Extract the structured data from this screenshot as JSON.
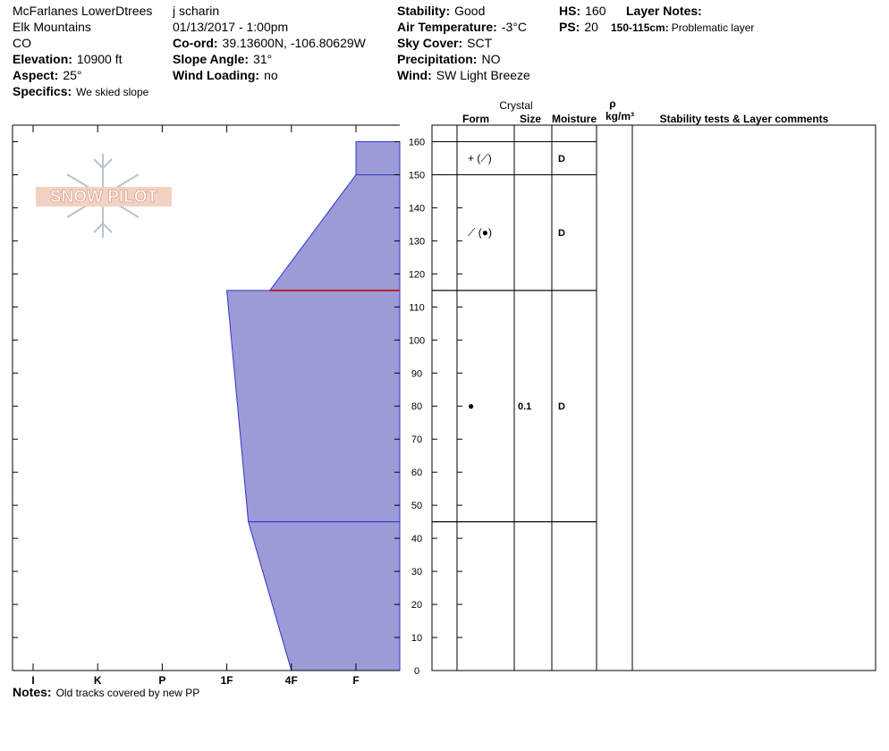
{
  "header": {
    "col1": [
      "McFarlanes LowerDtrees",
      "Elk Mountains",
      "CO",
      {
        "label": "Elevation:",
        "value": "10900 ft"
      },
      {
        "label": "Aspect:",
        "value": "25°"
      },
      {
        "label": "Specifics:",
        "value": "We skied slope"
      }
    ],
    "col2": [
      "j scharin",
      "01/13/2017 - 1:00pm",
      {
        "label": "Co-ord:",
        "value": "39.13600N, -106.80629W"
      },
      {
        "label": "Slope Angle:",
        "value": "31°"
      },
      {
        "label": "Wind Loading:",
        "value": "no"
      }
    ],
    "col3": [
      {
        "label": "Stability:",
        "value": "Good"
      },
      {
        "label": "Air Temperature:",
        "value": "-3°C"
      },
      {
        "label": "Sky Cover:",
        "value": "SCT"
      },
      {
        "label": "Precipitation:",
        "value": "NO"
      },
      {
        "label": "Wind:",
        "value": "SW Light Breeze"
      }
    ],
    "col4": [
      {
        "label": "HS:",
        "value": "160"
      },
      {
        "label": "PS:",
        "value": "20"
      }
    ],
    "layer_notes": {
      "title": "Layer Notes:",
      "items": [
        {
          "label": "150-115cm:",
          "value": "Problematic layer"
        }
      ]
    }
  },
  "logo": "SNOW PILOT",
  "chart_data": {
    "type": "snow-profile",
    "ylim": [
      0,
      165
    ],
    "yticks": [
      0,
      10,
      20,
      30,
      40,
      50,
      60,
      70,
      80,
      90,
      100,
      110,
      120,
      130,
      140,
      150,
      160
    ],
    "hardness_scale": [
      "I",
      "K",
      "P",
      "1F",
      "4F",
      "F"
    ],
    "layer_color": "#9b9bd7",
    "edge_color": "#3333cc",
    "concern_color": "#b22222",
    "concern_height": 115,
    "columns": {
      "crystal": "Crystal",
      "form": "Form",
      "size": "Size",
      "moisture": "Moisture",
      "rho": "ρ",
      "density_unit": "kg/m³",
      "comments": "Stability tests & Layer comments"
    },
    "layers": [
      {
        "top": 160,
        "bottom": 150,
        "form": "+ (⟋)",
        "moisture": "D",
        "hardness_top": "F",
        "hardness_bottom": "F"
      },
      {
        "top": 150,
        "bottom": 115,
        "form": "⟋ (●)",
        "moisture": "D",
        "hardness_top": "F",
        "hardness_bottom": "4F+"
      },
      {
        "top": 115,
        "bottom": 45,
        "form": "●",
        "size": "0.1",
        "moisture": "D",
        "hardness_top": "1F",
        "hardness_bottom": "1F-"
      },
      {
        "top": 45,
        "bottom": 0,
        "hardness_top": "1F-",
        "hardness_bottom": "4F"
      }
    ]
  },
  "notes": {
    "label": "Notes:",
    "value": "Old tracks covered by new PP"
  }
}
